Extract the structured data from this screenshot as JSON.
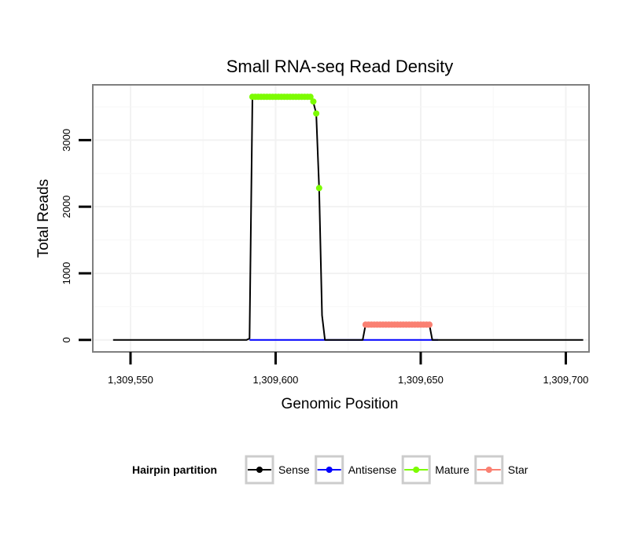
{
  "chart_data": {
    "type": "line",
    "title": "Small RNA-seq Read Density",
    "xlabel": "Genomic Position",
    "ylabel": "Total Reads",
    "xlim": [
      1309537,
      1309708
    ],
    "ylim": [
      -180,
      3830
    ],
    "x_ticks": [
      1309550,
      1309600,
      1309650,
      1309700
    ],
    "x_tick_labels": [
      "1,309,550",
      "1,309,600",
      "1,309,650",
      "1,309,700"
    ],
    "y_ticks": [
      0,
      1000,
      2000,
      3000
    ],
    "y_tick_labels": [
      "0",
      "1000",
      "2000",
      "3000"
    ],
    "grid": true,
    "legend": {
      "title": "Hairpin partition",
      "placement": "bottom",
      "entries": [
        "Sense",
        "Antisense",
        "Mature",
        "Star"
      ]
    },
    "series": [
      {
        "name": "Sense",
        "color": "#000000",
        "x": [
          1309544,
          1309590,
          1309591,
          1309592,
          1309612,
          1309613,
          1309614,
          1309615,
          1309616,
          1309617,
          1309630,
          1309631,
          1309653,
          1309654,
          1309706
        ],
        "y": [
          0,
          0,
          20,
          3650,
          3650,
          3570,
          3400,
          2280,
          370,
          0,
          0,
          230,
          230,
          0,
          0
        ]
      },
      {
        "name": "Antisense",
        "color": "#0000FF",
        "x": [
          1309591,
          1309656
        ],
        "y": [
          0,
          0
        ]
      },
      {
        "name": "Mature",
        "color": "#7CFC00",
        "x": [
          1309592,
          1309593,
          1309594,
          1309595,
          1309596,
          1309597,
          1309598,
          1309599,
          1309600,
          1309601,
          1309602,
          1309603,
          1309604,
          1309605,
          1309606,
          1309607,
          1309608,
          1309609,
          1309610,
          1309611,
          1309612,
          1309613,
          1309614,
          1309615
        ],
        "y": [
          3650,
          3650,
          3650,
          3650,
          3650,
          3650,
          3650,
          3650,
          3650,
          3650,
          3650,
          3650,
          3650,
          3650,
          3650,
          3650,
          3650,
          3650,
          3650,
          3650,
          3650,
          3580,
          3400,
          2280
        ]
      },
      {
        "name": "Star",
        "color": "#FA8072",
        "x": [
          1309631,
          1309632,
          1309633,
          1309634,
          1309635,
          1309636,
          1309637,
          1309638,
          1309639,
          1309640,
          1309641,
          1309642,
          1309643,
          1309644,
          1309645,
          1309646,
          1309647,
          1309648,
          1309649,
          1309650,
          1309651,
          1309652,
          1309653
        ],
        "y": [
          230,
          230,
          230,
          230,
          230,
          230,
          230,
          230,
          230,
          230,
          230,
          230,
          230,
          230,
          230,
          230,
          230,
          230,
          230,
          230,
          230,
          230,
          230
        ]
      }
    ]
  }
}
